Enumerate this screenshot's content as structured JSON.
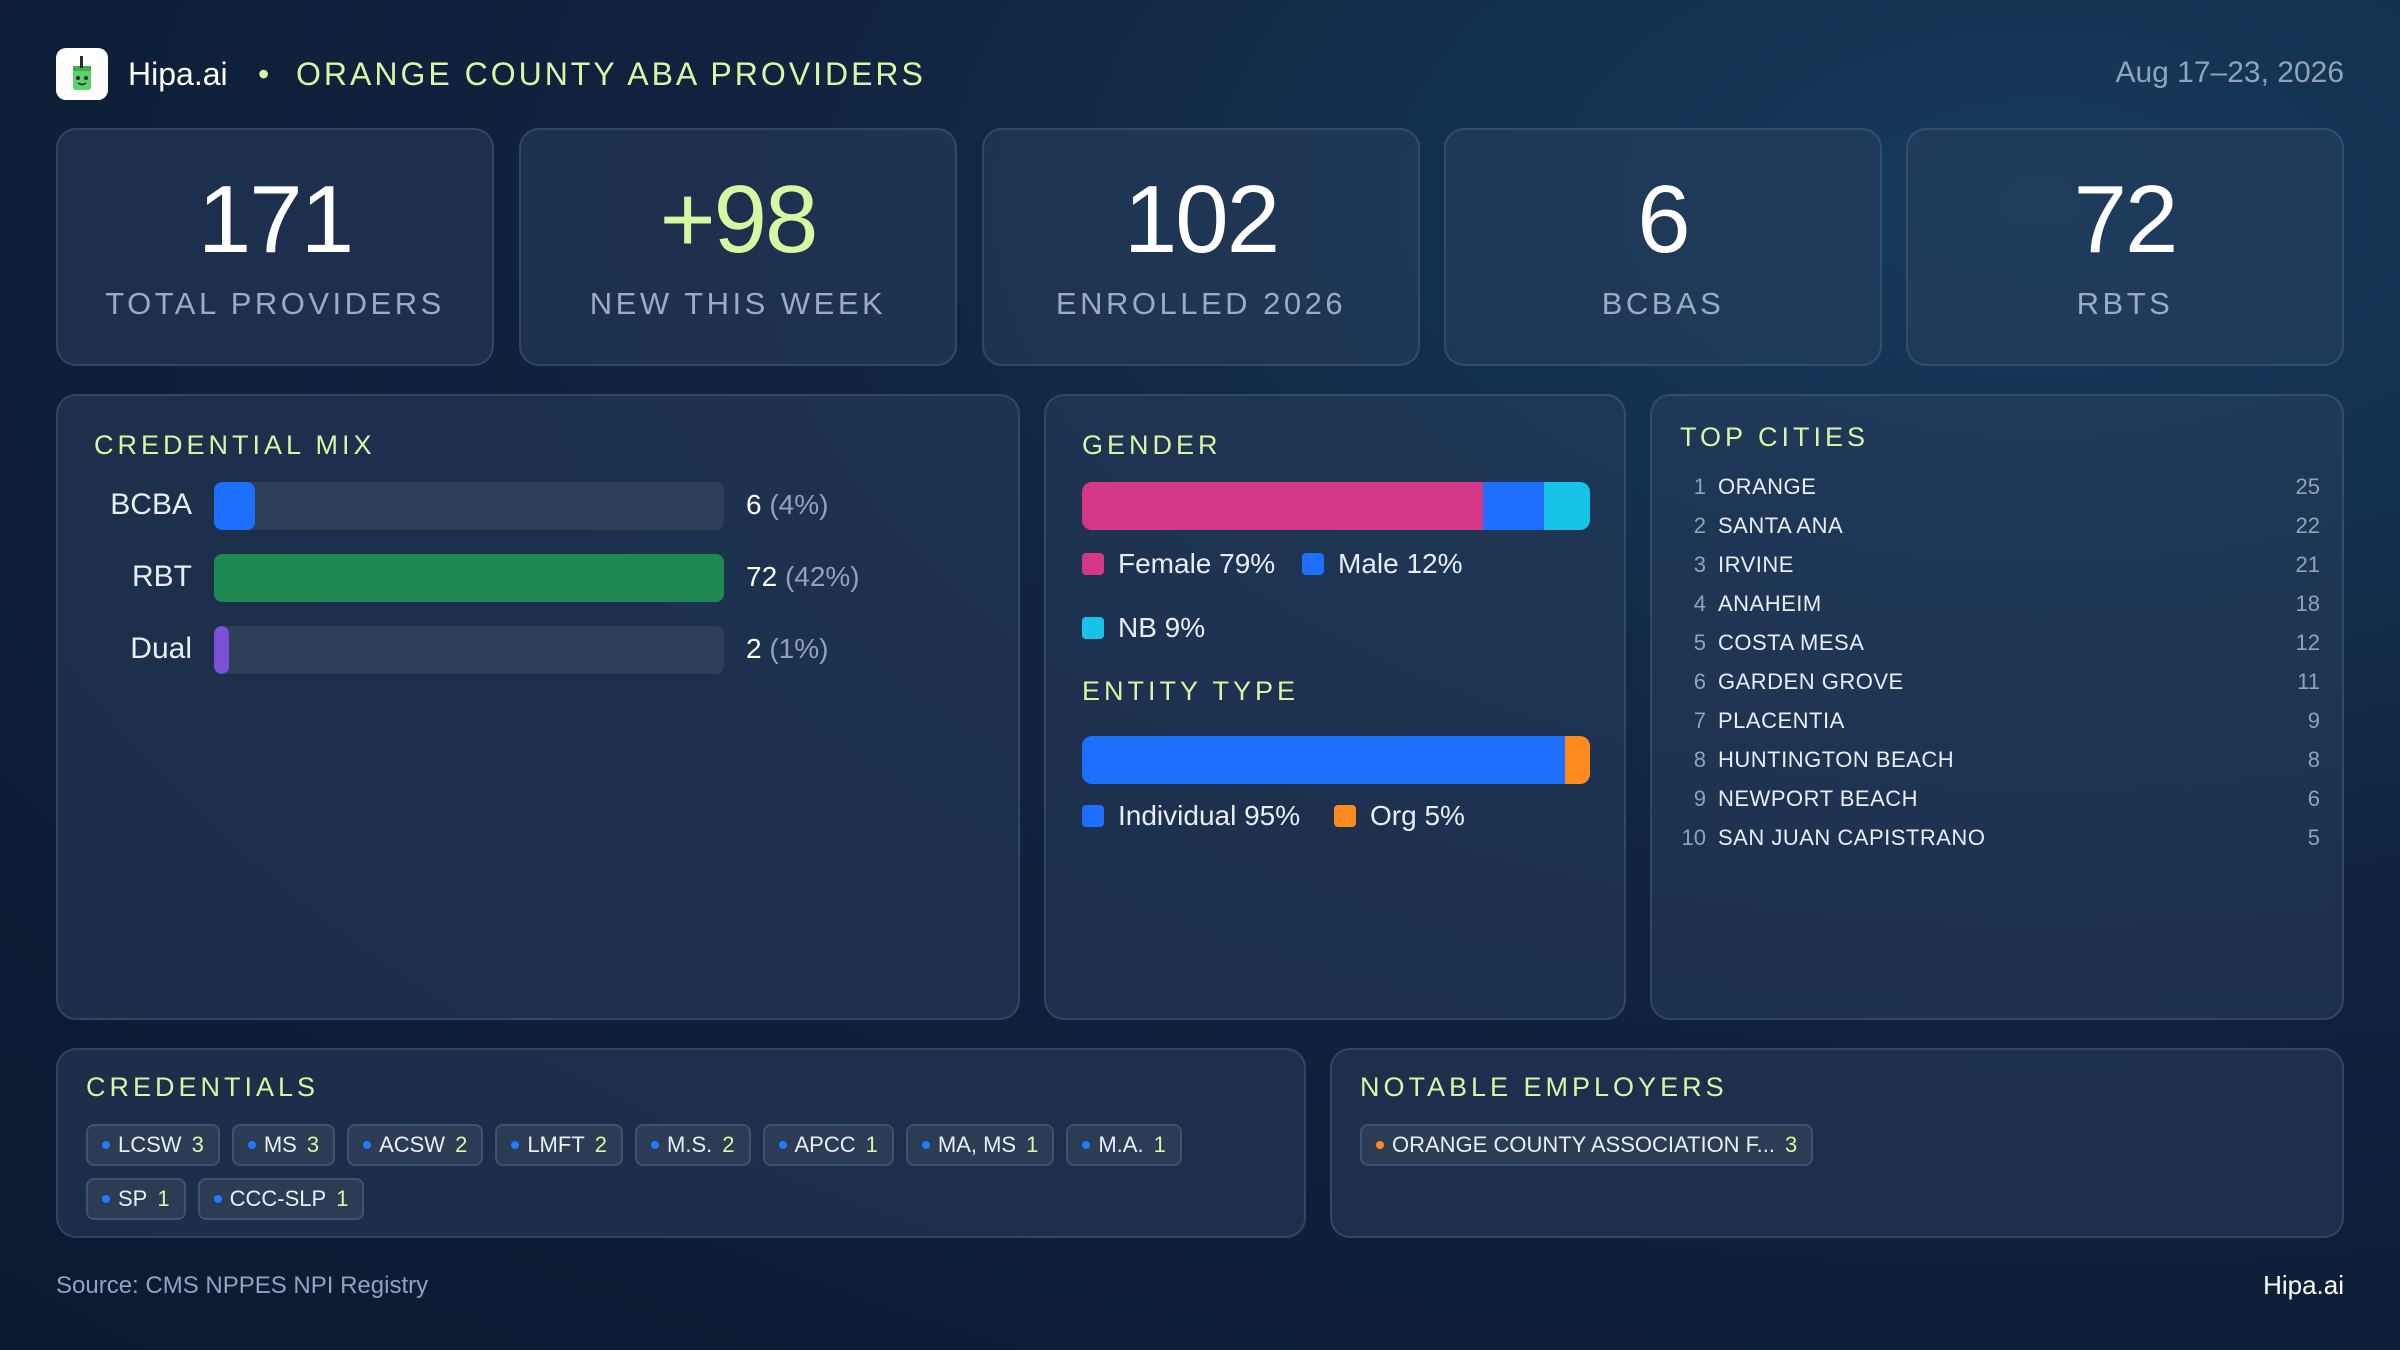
{
  "header": {
    "brand": "Hipa.ai",
    "separator": "•",
    "title": "ORANGE COUNTY ABA PROVIDERS",
    "date_range": "Aug 17–23, 2026",
    "logo_icon": "cup-icon"
  },
  "kpis": [
    {
      "value": "171",
      "label": "TOTAL PROVIDERS"
    },
    {
      "value": "+98",
      "label": "NEW THIS WEEK"
    },
    {
      "value": "102",
      "label": "ENROLLED 2026"
    },
    {
      "value": "6",
      "label": "BCBAS"
    },
    {
      "value": "72",
      "label": "RBTS"
    }
  ],
  "credential_mix": {
    "title": "CREDENTIAL MIX",
    "rows": [
      {
        "name": "BCBA",
        "count": "6",
        "pct": "(4%)",
        "fraction": 0.08,
        "color": "#1f6fff"
      },
      {
        "name": "RBT",
        "count": "72",
        "pct": "(42%)",
        "fraction": 1.0,
        "color": "#1e8a52"
      },
      {
        "name": "Dual",
        "count": "2",
        "pct": "(1%)",
        "fraction": 0.03,
        "color": "#7b4fd6"
      }
    ]
  },
  "gender": {
    "title": "GENDER",
    "segments": [
      {
        "label": "Female 79%",
        "share": 0.79,
        "color": "#d63888"
      },
      {
        "label": "Male 12%",
        "share": 0.12,
        "color": "#1f6fff"
      },
      {
        "label": "NB 9%",
        "share": 0.09,
        "color": "#18c3ea"
      }
    ]
  },
  "entity_type": {
    "title": "ENTITY TYPE",
    "segments": [
      {
        "label": "Individual 95%",
        "share": 0.95,
        "color": "#1f6fff"
      },
      {
        "label": "Org 5%",
        "share": 0.05,
        "color": "#ff8a1f"
      }
    ]
  },
  "top_cities": {
    "title": "TOP CITIES",
    "rows": [
      {
        "rank": "1",
        "name": "ORANGE",
        "count": "25"
      },
      {
        "rank": "2",
        "name": "SANTA ANA",
        "count": "22"
      },
      {
        "rank": "3",
        "name": "IRVINE",
        "count": "21"
      },
      {
        "rank": "4",
        "name": "ANAHEIM",
        "count": "18"
      },
      {
        "rank": "5",
        "name": "COSTA MESA",
        "count": "12"
      },
      {
        "rank": "6",
        "name": "GARDEN GROVE",
        "count": "11"
      },
      {
        "rank": "7",
        "name": "PLACENTIA",
        "count": "9"
      },
      {
        "rank": "8",
        "name": "HUNTINGTON BEACH",
        "count": "8"
      },
      {
        "rank": "9",
        "name": "NEWPORT BEACH",
        "count": "6"
      },
      {
        "rank": "10",
        "name": "SAN JUAN CAPISTRANO",
        "count": "5"
      }
    ]
  },
  "credentials": {
    "title": "CREDENTIALS",
    "chips": [
      {
        "name": "LCSW",
        "count": "3"
      },
      {
        "name": "MS",
        "count": "3"
      },
      {
        "name": "ACSW",
        "count": "2"
      },
      {
        "name": "LMFT",
        "count": "2"
      },
      {
        "name": "M.S.",
        "count": "2"
      },
      {
        "name": "APCC",
        "count": "1"
      },
      {
        "name": "MA, MS",
        "count": "1"
      },
      {
        "name": "M.A.",
        "count": "1"
      },
      {
        "name": "SP",
        "count": "1"
      },
      {
        "name": "CCC-SLP",
        "count": "1"
      }
    ]
  },
  "employers": {
    "title": "NOTABLE EMPLOYERS",
    "chips": [
      {
        "name": "ORANGE COUNTY ASSOCIATION F...",
        "count": "3"
      }
    ]
  },
  "footer": {
    "source": "Source: CMS NPPES NPI Registry",
    "brand": "Hipa.ai"
  }
}
